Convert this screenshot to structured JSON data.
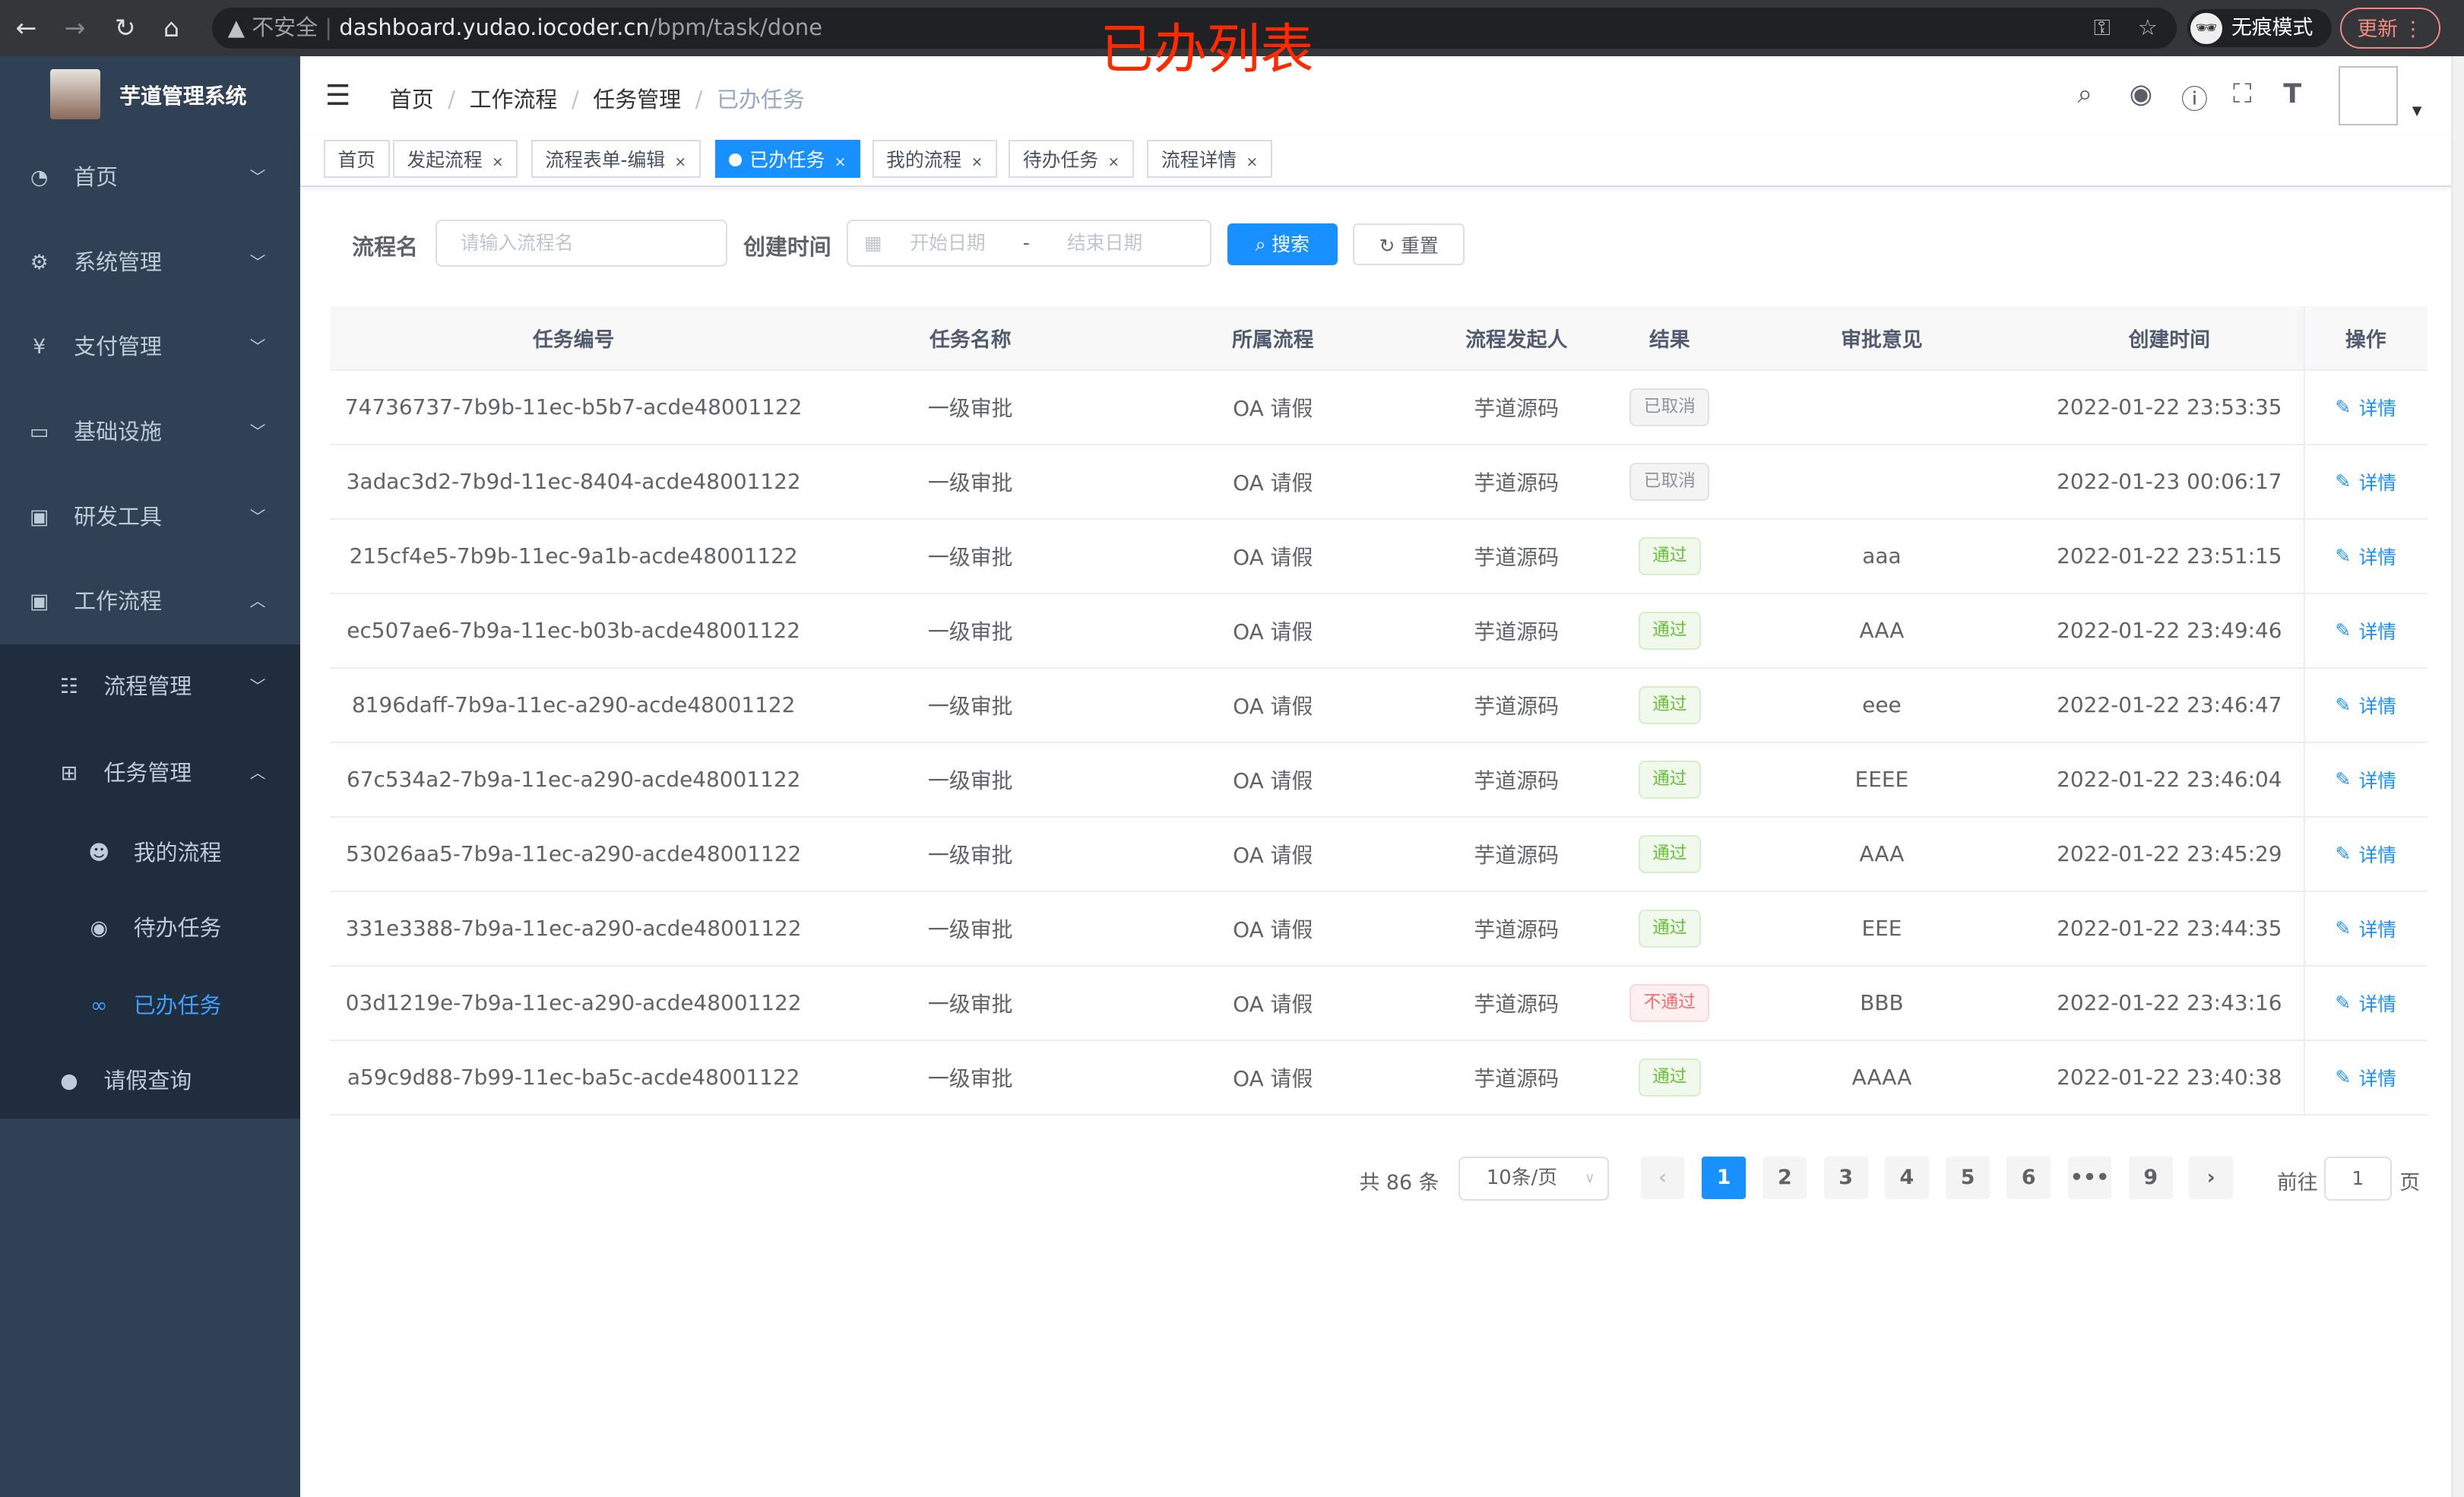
{
  "browser": {
    "insecure_label": "不安全",
    "url_host": "dashboard.yudao.iocoder.cn",
    "url_path": "/bpm/task/done",
    "incognito_label": "无痕模式",
    "update_label": "更新"
  },
  "overlay_title": "已办列表",
  "app": {
    "title": "芋道管理系统"
  },
  "sidebar": {
    "items": [
      {
        "label": "首页",
        "icon": "dashboard-icon"
      },
      {
        "label": "系统管理",
        "icon": "gear-icon"
      },
      {
        "label": "支付管理",
        "icon": "yen-icon"
      },
      {
        "label": "基础设施",
        "icon": "monitor-icon"
      },
      {
        "label": "研发工具",
        "icon": "toolbox-icon"
      },
      {
        "label": "工作流程",
        "icon": "toolbox-icon"
      },
      {
        "label": "流程管理",
        "icon": "list-icon"
      },
      {
        "label": "任务管理",
        "icon": "tree-icon"
      },
      {
        "label": "我的流程",
        "icon": "people-icon"
      },
      {
        "label": "待办任务",
        "icon": "eye-icon"
      },
      {
        "label": "已办任务",
        "icon": "glasses-icon"
      },
      {
        "label": "请假查询",
        "icon": "user-icon"
      }
    ],
    "active": "已办任务"
  },
  "breadcrumb": [
    "首页",
    "工作流程",
    "任务管理",
    "已办任务"
  ],
  "tags": [
    {
      "label": "首页"
    },
    {
      "label": "发起流程"
    },
    {
      "label": "流程表单-编辑"
    },
    {
      "label": "已办任务",
      "active": true
    },
    {
      "label": "我的流程"
    },
    {
      "label": "待办任务"
    },
    {
      "label": "流程详情"
    }
  ],
  "search": {
    "name_label": "流程名",
    "name_placeholder": "请输入流程名",
    "time_label": "创建时间",
    "start_placeholder": "开始日期",
    "sep": "-",
    "end_placeholder": "结束日期",
    "search_label": "搜索",
    "reset_label": "重置"
  },
  "table": {
    "columns": [
      "任务编号",
      "任务名称",
      "所属流程",
      "流程发起人",
      "结果",
      "审批意见",
      "创建时间",
      "操作"
    ],
    "rows": [
      [
        "74736737-7b9b-11ec-b5b7-acde48001122",
        "一级审批",
        "OA 请假",
        "芋道源码",
        "已取消",
        "",
        "2022-01-22 23:53:35"
      ],
      [
        "3adac3d2-7b9d-11ec-8404-acde48001122",
        "一级审批",
        "OA 请假",
        "芋道源码",
        "已取消",
        "",
        "2022-01-23 00:06:17"
      ],
      [
        "215cf4e5-7b9b-11ec-9a1b-acde48001122",
        "一级审批",
        "OA 请假",
        "芋道源码",
        "通过",
        "aaa",
        "2022-01-22 23:51:15"
      ],
      [
        "ec507ae6-7b9a-11ec-b03b-acde48001122",
        "一级审批",
        "OA 请假",
        "芋道源码",
        "通过",
        "AAA",
        "2022-01-22 23:49:46"
      ],
      [
        "8196daff-7b9a-11ec-a290-acde48001122",
        "一级审批",
        "OA 请假",
        "芋道源码",
        "通过",
        "eee",
        "2022-01-22 23:46:47"
      ],
      [
        "67c534a2-7b9a-11ec-a290-acde48001122",
        "一级审批",
        "OA 请假",
        "芋道源码",
        "通过",
        "EEEE",
        "2022-01-22 23:46:04"
      ],
      [
        "53026aa5-7b9a-11ec-a290-acde48001122",
        "一级审批",
        "OA 请假",
        "芋道源码",
        "通过",
        "AAA",
        "2022-01-22 23:45:29"
      ],
      [
        "331e3388-7b9a-11ec-a290-acde48001122",
        "一级审批",
        "OA 请假",
        "芋道源码",
        "通过",
        "EEE",
        "2022-01-22 23:44:35"
      ],
      [
        "03d1219e-7b9a-11ec-a290-acde48001122",
        "一级审批",
        "OA 请假",
        "芋道源码",
        "不通过",
        "BBB",
        "2022-01-22 23:43:16"
      ],
      [
        "a59c9d88-7b99-11ec-ba5c-acde48001122",
        "一级审批",
        "OA 请假",
        "芋道源码",
        "通过",
        "AAAA",
        "2022-01-22 23:40:38"
      ]
    ],
    "action_label": "详情"
  },
  "result_colors": {
    "已取消": "#909399",
    "通过": "#67c23a",
    "不通过": "#f56c6c"
  },
  "pagination": {
    "total_label": "共 86 条",
    "page_size": "10条/页",
    "pages": [
      "1",
      "2",
      "3",
      "4",
      "5",
      "6",
      "•••",
      "9"
    ],
    "current": "1",
    "goto_label": "前往",
    "goto_value": "1",
    "page_suffix": "页"
  },
  "accent": "#1890ff"
}
